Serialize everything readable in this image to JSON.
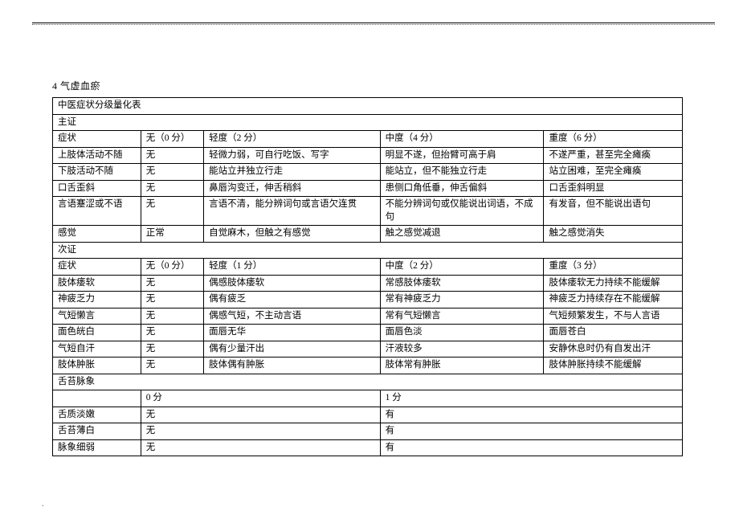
{
  "heading": "4 气虚血瘀",
  "table_title": "中医症状分级量化表",
  "section_primary": "主证",
  "section_secondary": "次证",
  "section_tongue": "舌苔脉象",
  "primary_header": {
    "c1": "症状",
    "c2": "无（0 分）",
    "c3": "轻度（2 分）",
    "c4": "中度（4 分）",
    "c5": "重度（6 分）"
  },
  "primary_rows": [
    {
      "c1": "上肢体活动不随",
      "c2": "无",
      "c3": "轻微力弱，可自行吃饭、写字",
      "c4": "明显不遂，但抬臂可高于肩",
      "c5": "不遂严重，甚至完全瘫痪"
    },
    {
      "c1": "下肢活动不随",
      "c2": "无",
      "c3": "能站立并独立行走",
      "c4": "能站立，但不能独立行走",
      "c5": "站立困难，至完全瘫痪"
    },
    {
      "c1": "口舌歪斜",
      "c2": "无",
      "c3": "鼻唇沟变迁，伸舌稍斜",
      "c4": "患侧口角低垂，伸舌偏斜",
      "c5": "口舌歪斜明显"
    },
    {
      "c1": "言语蹇涩或不语",
      "c2": "无",
      "c3": "言语不清，能分辨词句或言语欠连贯",
      "c4": "不能分辨词句或仅能说出词语，不成句",
      "c5": "有发音，但不能说出语句"
    },
    {
      "c1": "感觉",
      "c2": "正常",
      "c3": "自觉麻木，但触之有感觉",
      "c4": "触之感觉减退",
      "c5": "触之感觉消失"
    }
  ],
  "secondary_header": {
    "c1": "症状",
    "c2": "无（0 分）",
    "c3": "轻度（1 分）",
    "c4": "中度（2 分）",
    "c5": "重度（3 分）"
  },
  "secondary_rows": [
    {
      "c1": "肢体痿软",
      "c2": "无",
      "c3": "偶感肢体痿软",
      "c4": "常感肢体痿软",
      "c5": "肢体痿软无力持续不能缓解"
    },
    {
      "c1": "神疲乏力",
      "c2": "无",
      "c3": "偶有疲乏",
      "c4": "常有神疲乏力",
      "c5": "神疲乏力持续存在不能缓解"
    },
    {
      "c1": "气短懒言",
      "c2": "无",
      "c3": "偶感气短，不主动言语",
      "c4": "常有气短懒言",
      "c5": "气短频繁发生，不与人言语"
    },
    {
      "c1": "面色㿠白",
      "c2": "无",
      "c3": "面唇无华",
      "c4": "面唇色淡",
      "c5": "面唇苍白"
    },
    {
      "c1": "气短自汗",
      "c2": "无",
      "c3": "偶有少量汗出",
      "c4": "汗液较多",
      "c5": "安静休息时仍有自发出汗"
    },
    {
      "c1": "肢体肿胀",
      "c2": "无",
      "c3": "肢体偶有肿胀",
      "c4": "肢体常有肿胀",
      "c5": "肢体肿胀持续不能缓解"
    }
  ],
  "tongue_header": {
    "c1": "",
    "c2": "0 分",
    "c3": "1 分"
  },
  "tongue_rows": [
    {
      "c1": "舌质淡嫩",
      "c2": "无",
      "c3": "有"
    },
    {
      "c1": "舌苔薄白",
      "c2": "无",
      "c3": "有"
    },
    {
      "c1": "脉象细弱",
      "c2": "无",
      "c3": "有"
    }
  ],
  "bottom_mark": "."
}
